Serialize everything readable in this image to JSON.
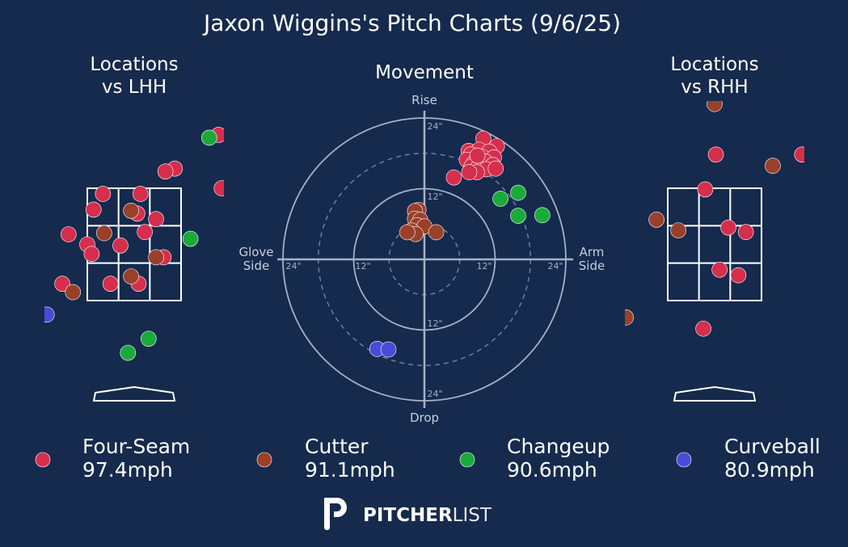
{
  "title": "Jaxon Wiggins's Pitch Charts (9/6/25)",
  "panels": {
    "lhh_title": [
      "Locations",
      "vs LHH"
    ],
    "movement_title": "Movement",
    "rhh_title": [
      "Locations",
      "vs RHH"
    ]
  },
  "movement_axes": {
    "top": "Rise",
    "bottom": "Drop",
    "left": [
      "Glove",
      "Side"
    ],
    "right": [
      "Arm",
      "Side"
    ],
    "ticks": [
      "24\"",
      "12\"",
      "12\"",
      "24\"",
      "12\"",
      "24\"",
      "12\"",
      "24\""
    ]
  },
  "colors": {
    "Four-Seam": "#d62e4d",
    "Cutter": "#9a3f2a",
    "Changeup": "#1aaa3a",
    "Curveball": "#4a4ad6",
    "background": "#152a4d"
  },
  "legend": [
    {
      "pitch": "Four-Seam",
      "speed": "97.4mph"
    },
    {
      "pitch": "Cutter",
      "speed": "91.1mph"
    },
    {
      "pitch": "Changeup",
      "speed": "90.6mph"
    },
    {
      "pitch": "Curveball",
      "speed": "80.9mph"
    }
  ],
  "brand": {
    "bold": "PITCHER",
    "light": "LIST",
    "logo_icon": "pitcherlist-p-icon"
  },
  "chart_data": [
    {
      "type": "scatter",
      "name": "Locations vs LHH",
      "title": "Locations vs LHH",
      "xlim": [
        -2.2,
        2.2
      ],
      "ylim": [
        -0.4,
        5.0
      ],
      "strike_zone": {
        "x": [
          -0.75,
          0.75
        ],
        "z": [
          1.5,
          3.5
        ]
      },
      "points": [
        {
          "pitch": "Four-Seam",
          "x": 1.35,
          "z": 4.45
        },
        {
          "pitch": "Four-Seam",
          "x": 0.65,
          "z": 3.85
        },
        {
          "pitch": "Four-Seam",
          "x": 0.5,
          "z": 3.8
        },
        {
          "pitch": "Four-Seam",
          "x": 1.4,
          "z": 3.5
        },
        {
          "pitch": "Four-Seam",
          "x": -0.5,
          "z": 3.4
        },
        {
          "pitch": "Four-Seam",
          "x": 0.1,
          "z": 3.4
        },
        {
          "pitch": "Four-Seam",
          "x": -0.65,
          "z": 3.12
        },
        {
          "pitch": "Four-Seam",
          "x": 0.05,
          "z": 3.05
        },
        {
          "pitch": "Four-Seam",
          "x": 0.35,
          "z": 2.95
        },
        {
          "pitch": "Four-Seam",
          "x": 0.17,
          "z": 2.72
        },
        {
          "pitch": "Four-Seam",
          "x": -1.05,
          "z": 2.68
        },
        {
          "pitch": "Four-Seam",
          "x": -0.75,
          "z": 2.5
        },
        {
          "pitch": "Four-Seam",
          "x": -0.22,
          "z": 2.48
        },
        {
          "pitch": "Four-Seam",
          "x": -0.68,
          "z": 2.33
        },
        {
          "pitch": "Four-Seam",
          "x": 0.47,
          "z": 2.27
        },
        {
          "pitch": "Four-Seam",
          "x": -1.15,
          "z": 1.8
        },
        {
          "pitch": "Four-Seam",
          "x": -0.38,
          "z": 1.8
        },
        {
          "pitch": "Four-Seam",
          "x": 0.07,
          "z": 1.8
        },
        {
          "pitch": "Cutter",
          "x": -0.05,
          "z": 3.1
        },
        {
          "pitch": "Cutter",
          "x": -0.48,
          "z": 2.7
        },
        {
          "pitch": "Cutter",
          "x": 0.35,
          "z": 2.27
        },
        {
          "pitch": "Cutter",
          "x": -0.05,
          "z": 1.93
        },
        {
          "pitch": "Cutter",
          "x": -0.98,
          "z": 1.65
        },
        {
          "pitch": "Changeup",
          "x": 1.2,
          "z": 4.4
        },
        {
          "pitch": "Changeup",
          "x": 0.9,
          "z": 2.6
        },
        {
          "pitch": "Changeup",
          "x": 0.23,
          "z": 0.82
        },
        {
          "pitch": "Changeup",
          "x": -0.1,
          "z": 0.57
        },
        {
          "pitch": "Curveball",
          "x": -1.4,
          "z": 1.25
        }
      ]
    },
    {
      "type": "scatter",
      "name": "Movement",
      "title": "Movement",
      "xlabel_left": "Glove Side",
      "xlabel_right": "Arm Side",
      "ylabel_top": "Rise",
      "ylabel_bottom": "Drop",
      "units": "inches",
      "rings": [
        6,
        12,
        18,
        24
      ],
      "points": [
        {
          "pitch": "Four-Seam",
          "x": 10,
          "z": 20.5
        },
        {
          "pitch": "Four-Seam",
          "x": 12.3,
          "z": 19.2
        },
        {
          "pitch": "Four-Seam",
          "x": 7.5,
          "z": 18.4
        },
        {
          "pitch": "Four-Seam",
          "x": 9.3,
          "z": 18.6
        },
        {
          "pitch": "Four-Seam",
          "x": 11,
          "z": 18.3
        },
        {
          "pitch": "Four-Seam",
          "x": 7.9,
          "z": 17.8
        },
        {
          "pitch": "Four-Seam",
          "x": 9.8,
          "z": 17.4
        },
        {
          "pitch": "Four-Seam",
          "x": 11.8,
          "z": 17.3
        },
        {
          "pitch": "Four-Seam",
          "x": 7.2,
          "z": 16.9
        },
        {
          "pitch": "Four-Seam",
          "x": 8.4,
          "z": 16.4
        },
        {
          "pitch": "Four-Seam",
          "x": 10.3,
          "z": 16.6
        },
        {
          "pitch": "Four-Seam",
          "x": 11.6,
          "z": 16.0
        },
        {
          "pitch": "Four-Seam",
          "x": 8.0,
          "z": 15.8
        },
        {
          "pitch": "Four-Seam",
          "x": 9.1,
          "z": 15.6
        },
        {
          "pitch": "Four-Seam",
          "x": 10.5,
          "z": 15.3
        },
        {
          "pitch": "Four-Seam",
          "x": 12.1,
          "z": 15.4
        },
        {
          "pitch": "Four-Seam",
          "x": 8.9,
          "z": 14.8
        },
        {
          "pitch": "Four-Seam",
          "x": 7.6,
          "z": 14.8
        },
        {
          "pitch": "Four-Seam",
          "x": 5.0,
          "z": 13.9
        },
        {
          "pitch": "Four-Seam",
          "x": 9.0,
          "z": 17.6
        },
        {
          "pitch": "Cutter",
          "x": -1.0,
          "z": 8.4
        },
        {
          "pitch": "Cutter",
          "x": -1.6,
          "z": 8.2
        },
        {
          "pitch": "Cutter",
          "x": -1.6,
          "z": 6.9
        },
        {
          "pitch": "Cutter",
          "x": -0.7,
          "z": 6.7
        },
        {
          "pitch": "Cutter",
          "x": -1.2,
          "z": 5.8
        },
        {
          "pitch": "Cutter",
          "x": 0.0,
          "z": 5.6
        },
        {
          "pitch": "Cutter",
          "x": -2.2,
          "z": 4.9
        },
        {
          "pitch": "Cutter",
          "x": -1.5,
          "z": 4.3
        },
        {
          "pitch": "Cutter",
          "x": -2.9,
          "z": 4.6
        },
        {
          "pitch": "Cutter",
          "x": 2.0,
          "z": 4.6
        },
        {
          "pitch": "Changeup",
          "x": 15.9,
          "z": 11.3
        },
        {
          "pitch": "Changeup",
          "x": 12.9,
          "z": 10.3
        },
        {
          "pitch": "Changeup",
          "x": 15.9,
          "z": 7.4
        },
        {
          "pitch": "Changeup",
          "x": 20.0,
          "z": 7.5
        },
        {
          "pitch": "Curveball",
          "x": -8.0,
          "z": -15.2
        },
        {
          "pitch": "Curveball",
          "x": -6.1,
          "z": -15.3
        }
      ]
    },
    {
      "type": "scatter",
      "name": "Locations vs RHH",
      "title": "Locations vs RHH",
      "xlim": [
        -2.2,
        2.2
      ],
      "ylim": [
        -0.4,
        5.0
      ],
      "strike_zone": {
        "x": [
          -0.75,
          0.75
        ],
        "z": [
          1.5,
          3.5
        ]
      },
      "points": [
        {
          "pitch": "Cutter",
          "x": 0.0,
          "z": 5.0
        },
        {
          "pitch": "Four-Seam",
          "x": 0.02,
          "z": 4.1
        },
        {
          "pitch": "Cutter",
          "x": 0.93,
          "z": 3.9
        },
        {
          "pitch": "Four-Seam",
          "x": 1.4,
          "z": 4.1
        },
        {
          "pitch": "Four-Seam",
          "x": -0.15,
          "z": 3.48
        },
        {
          "pitch": "Cutter",
          "x": -0.93,
          "z": 2.94
        },
        {
          "pitch": "Cutter",
          "x": -0.58,
          "z": 2.75
        },
        {
          "pitch": "Four-Seam",
          "x": 0.22,
          "z": 2.8
        },
        {
          "pitch": "Four-Seam",
          "x": 0.5,
          "z": 2.72
        },
        {
          "pitch": "Four-Seam",
          "x": 0.08,
          "z": 2.05
        },
        {
          "pitch": "Four-Seam",
          "x": 0.38,
          "z": 1.95
        },
        {
          "pitch": "Cutter",
          "x": -1.42,
          "z": 1.2
        },
        {
          "pitch": "Four-Seam",
          "x": -0.18,
          "z": 1.0
        }
      ]
    }
  ]
}
